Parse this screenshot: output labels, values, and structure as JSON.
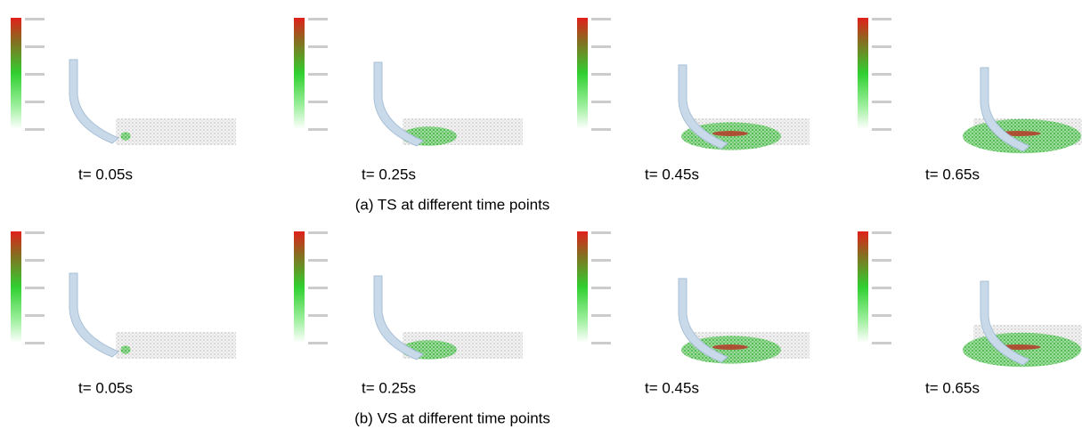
{
  "rows": [
    {
      "caption": "(a) TS at different time points",
      "panels": [
        {
          "time": "t= 0.05s"
        },
        {
          "time": "t= 0.25s"
        },
        {
          "time": "t= 0.45s"
        },
        {
          "time": "t= 0.65s"
        }
      ]
    },
    {
      "caption": "(b) VS at different time points",
      "panels": [
        {
          "time": "t= 0.05s"
        },
        {
          "time": "t= 0.25s"
        },
        {
          "time": "t= 0.45s"
        },
        {
          "time": "t= 0.65s"
        }
      ]
    }
  ]
}
